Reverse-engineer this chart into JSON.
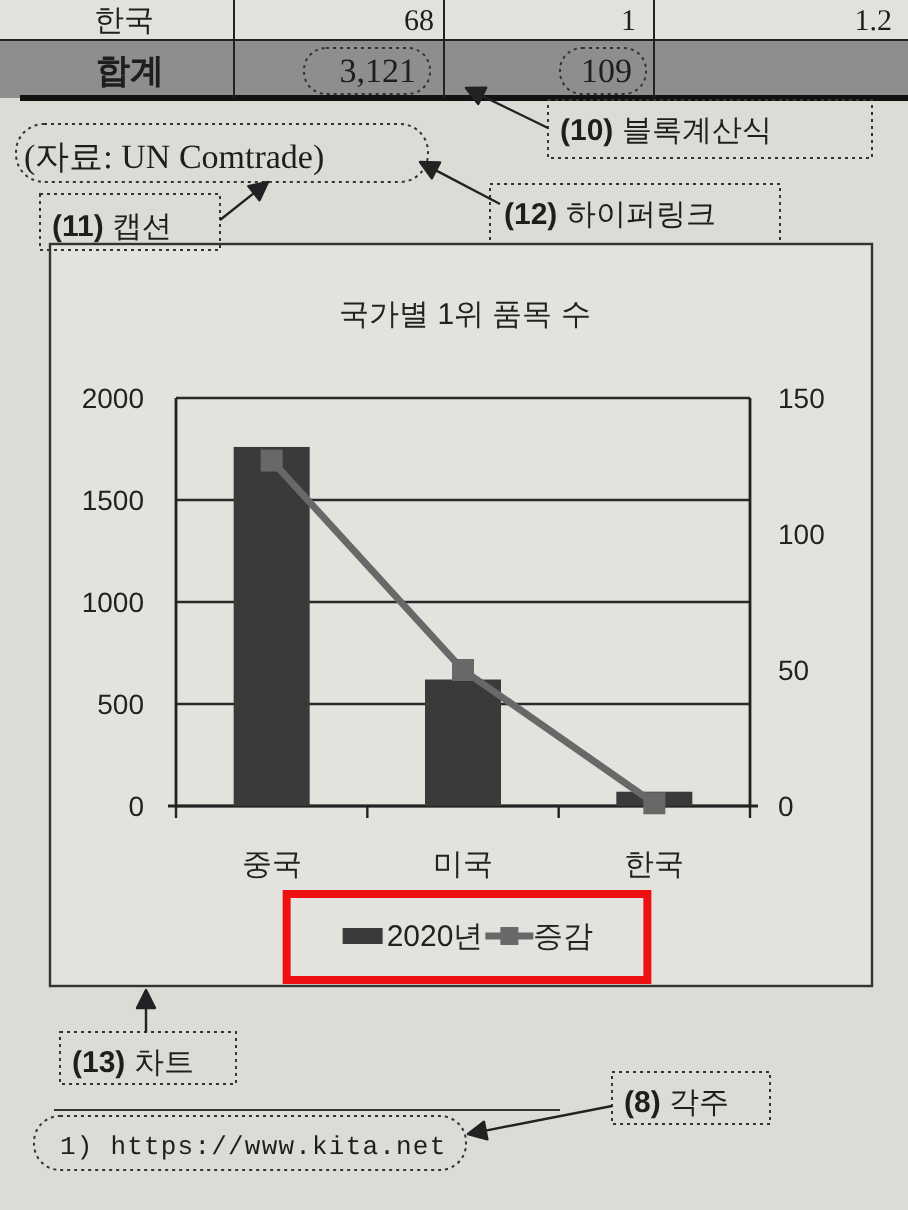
{
  "chart_data": {
    "type": "bar",
    "title": "국가별 1위 품목 수",
    "categories": [
      "중국",
      "미국",
      "한국"
    ],
    "series": [
      {
        "name": "2020년",
        "color": "#3a3a3a",
        "values": [
          1760,
          620,
          70
        ]
      },
      {
        "name": "증감",
        "type": "line",
        "color": "#686868",
        "values": [
          127,
          50,
          1
        ],
        "axis": "y2"
      }
    ],
    "ylim": [
      0,
      2000
    ],
    "yticks": [
      0,
      500,
      1000,
      1500,
      2000
    ],
    "y2lim": [
      0,
      150
    ],
    "y2ticks": [
      0,
      50,
      100,
      150
    ],
    "grid": "y",
    "legend": "bottom",
    "marker": "square",
    "annotations": [
      "한국",
      "68",
      "1",
      "1.2",
      "합계",
      "3,121",
      "109",
      "(10) 블록계산식",
      "(자료: UN Comtrade)",
      "(11) 캡션",
      "(12) 하이퍼링크",
      "(13) 차트",
      "(8) 각주",
      "1) https://www.kita.net"
    ]
  }
}
